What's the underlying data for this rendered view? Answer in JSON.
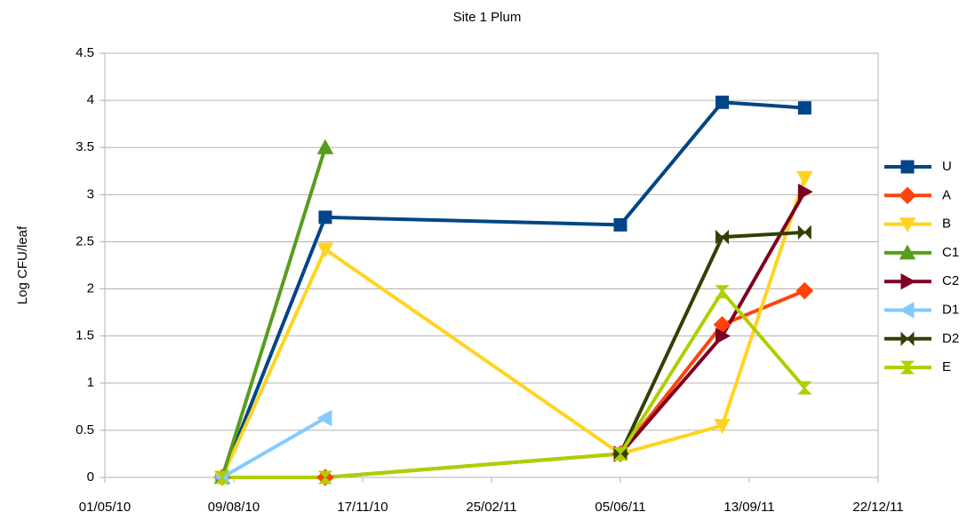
{
  "chart_data": {
    "type": "line",
    "title": "Site 1 Plum",
    "y_label": "Log CFU/leaf",
    "x": [
      "2010-07-31",
      "2010-10-19",
      "2011-06-05",
      "2011-08-23",
      "2011-10-26"
    ],
    "xlim": [
      "2010-05-01",
      "2011-12-22"
    ],
    "xticks": [
      {
        "value": "2010-05-01",
        "label": "01/05/10"
      },
      {
        "value": "2010-08-09",
        "label": "09/08/10"
      },
      {
        "value": "2010-11-17",
        "label": "17/11/10"
      },
      {
        "value": "2011-02-25",
        "label": "25/02/11"
      },
      {
        "value": "2011-06-05",
        "label": "05/06/11"
      },
      {
        "value": "2011-09-13",
        "label": "13/09/11"
      },
      {
        "value": "2011-12-22",
        "label": "22/12/11"
      }
    ],
    "ylim": [
      0,
      4.5
    ],
    "yticks": [
      0,
      0.5,
      1,
      1.5,
      2,
      2.5,
      3,
      3.5,
      4,
      4.5
    ],
    "grid": true,
    "legend": "right",
    "series": [
      {
        "name": "U",
        "color": "#004586",
        "marker": "square",
        "values": [
          0,
          2.76,
          2.68,
          3.98,
          3.92
        ]
      },
      {
        "name": "A",
        "color": "#ff420e",
        "marker": "diamond",
        "values": [
          0,
          0,
          0.25,
          1.62,
          1.98
        ]
      },
      {
        "name": "B",
        "color": "#ffd320",
        "marker": "triangle-down",
        "values": [
          0,
          2.42,
          0.25,
          0.55,
          3.18
        ]
      },
      {
        "name": "C1",
        "color": "#579d1c",
        "marker": "triangle-up",
        "values": [
          0,
          3.5,
          null,
          null,
          null
        ]
      },
      {
        "name": "C2",
        "color": "#7e0021",
        "marker": "triangle-right",
        "values": [
          null,
          null,
          0.25,
          1.5,
          3.03
        ]
      },
      {
        "name": "D1",
        "color": "#83caff",
        "marker": "triangle-left",
        "values": [
          0,
          0.63,
          null,
          null,
          null
        ]
      },
      {
        "name": "D2",
        "color": "#314004",
        "marker": "bowtie",
        "values": [
          null,
          null,
          0.25,
          2.55,
          2.6
        ]
      },
      {
        "name": "E",
        "color": "#aecf00",
        "marker": "hourglass",
        "values": [
          0,
          0,
          0.25,
          1.97,
          0.95
        ]
      }
    ]
  }
}
